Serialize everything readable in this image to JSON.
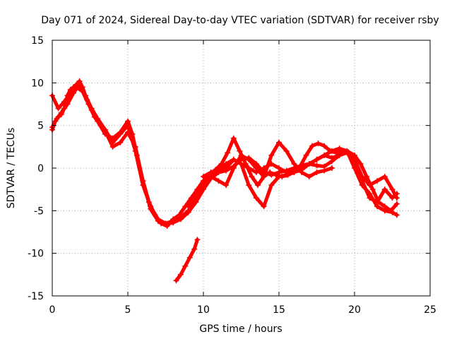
{
  "chart_data": {
    "type": "line",
    "title": "Day 071 of 2024, Sidereal Day-to-day VTEC variation (SDTVAR) for receiver rsby",
    "xlabel": "GPS time / hours",
    "ylabel": "SDTVAR / TECUs",
    "xlim": [
      0,
      25
    ],
    "ylim": [
      -15,
      15
    ],
    "xticks": [
      0,
      5,
      10,
      15,
      20,
      25
    ],
    "yticks": [
      -15,
      -10,
      -5,
      0,
      5,
      10,
      15
    ],
    "xtick_labels": [
      "0",
      "5",
      "10",
      "15",
      "20",
      "25"
    ],
    "ytick_labels": [
      "-15",
      "-10",
      "-5",
      "0",
      "5",
      "10",
      "15"
    ],
    "grid": true,
    "marker": "+",
    "color": "#ff0000",
    "series": [
      {
        "name": "track-1",
        "x": [
          0.0,
          0.2,
          0.4,
          0.6,
          0.8,
          1.0,
          1.2,
          1.4,
          1.6,
          1.8,
          2.0,
          2.3,
          2.6,
          3.0,
          3.5,
          4.0,
          4.5,
          5.0,
          5.3,
          5.6,
          6.0,
          6.4,
          6.8,
          7.2,
          7.6,
          8.0,
          8.4,
          8.8,
          9.2,
          9.6,
          10.0,
          10.4,
          10.8,
          11.2,
          11.6,
          12.0,
          12.4,
          12.8,
          13.2,
          13.6,
          14.0,
          14.4,
          14.8,
          15.2,
          15.6,
          16.0,
          16.4,
          16.8,
          17.2,
          17.6,
          18.0,
          18.4,
          18.8,
          19.2,
          19.6,
          20.0,
          20.4,
          20.8,
          21.2,
          21.6,
          22.0,
          22.4,
          22.8
        ],
        "y": [
          4.5,
          5.5,
          6.0,
          6.3,
          7.0,
          8.5,
          9.2,
          9.5,
          9.8,
          10.2,
          9.5,
          8.0,
          6.8,
          5.5,
          4.0,
          3.5,
          4.2,
          5.5,
          4.0,
          1.5,
          -1.5,
          -4.0,
          -5.5,
          -6.5,
          -6.8,
          -6.0,
          -5.5,
          -4.5,
          -3.5,
          -2.5,
          -1.5,
          -0.8,
          -0.2,
          0.5,
          1.8,
          3.5,
          2.0,
          0.5,
          -1.0,
          -2.0,
          -1.0,
          -0.5,
          -0.8,
          -1.0,
          -0.8,
          -0.5,
          0.2,
          1.5,
          2.6,
          2.9,
          2.6,
          2.0,
          1.8,
          2.0,
          1.9,
          1.5,
          0.5,
          -1.0,
          -2.5,
          -4.0,
          -4.5,
          -5.0,
          -4.2
        ]
      },
      {
        "name": "track-2",
        "x": [
          0.0,
          0.3,
          0.6,
          1.0,
          1.4,
          1.8,
          2.2,
          2.6,
          3.0,
          3.5,
          4.0,
          4.5,
          5.0,
          5.5,
          6.0,
          6.5,
          7.0,
          7.5,
          8.0,
          8.5,
          9.0,
          9.5,
          10.0,
          10.5,
          11.0,
          11.5,
          12.0,
          12.5,
          13.0,
          13.5,
          14.0,
          14.5,
          15.0,
          15.5,
          16.0,
          16.5,
          17.0,
          17.5,
          18.0,
          18.5,
          19.0,
          19.5,
          20.0,
          20.5,
          21.0,
          21.5,
          22.0,
          22.5,
          22.8
        ],
        "y": [
          4.8,
          5.8,
          6.5,
          7.5,
          8.8,
          9.8,
          8.5,
          7.0,
          5.8,
          4.5,
          3.0,
          4.0,
          5.0,
          2.0,
          -2.0,
          -4.5,
          -6.0,
          -6.5,
          -6.2,
          -5.8,
          -5.0,
          -3.5,
          -2.0,
          -1.0,
          0.0,
          0.5,
          1.0,
          0.5,
          0.0,
          -0.5,
          0.0,
          0.5,
          0.0,
          -0.5,
          -0.3,
          0.0,
          0.5,
          1.0,
          1.5,
          2.0,
          2.3,
          2.0,
          0.5,
          -1.5,
          -3.5,
          -4.0,
          -2.5,
          -3.5,
          -3.0
        ]
      },
      {
        "name": "track-3",
        "x": [
          0.0,
          0.4,
          0.8,
          1.2,
          1.6,
          2.0,
          2.4,
          2.8,
          3.2,
          3.6,
          4.0,
          4.5,
          5.0,
          5.5,
          6.0,
          6.5,
          7.0,
          7.5,
          8.0,
          8.5,
          9.0,
          9.5,
          10.0,
          10.5,
          11.0,
          11.5,
          12.0,
          12.5,
          13.0,
          13.5,
          14.0,
          14.5,
          15.0,
          15.5,
          16.0,
          16.5,
          17.0,
          17.5,
          18.0,
          18.5,
          19.0,
          19.5,
          20.0,
          20.5,
          21.0,
          21.5,
          22.0,
          22.5,
          22.8
        ],
        "y": [
          8.5,
          7.0,
          7.8,
          8.8,
          9.5,
          9.0,
          7.5,
          6.0,
          5.0,
          4.0,
          2.5,
          3.0,
          4.2,
          2.5,
          -1.5,
          -4.8,
          -6.2,
          -6.6,
          -6.4,
          -6.0,
          -5.2,
          -4.0,
          -2.5,
          -1.2,
          -0.5,
          -0.3,
          0.2,
          1.0,
          1.2,
          0.5,
          -0.5,
          -0.8,
          -0.5,
          -0.3,
          0.0,
          0.3,
          0.5,
          0.3,
          0.2,
          0.8,
          1.5,
          1.8,
          1.0,
          -1.0,
          -2.0,
          -1.5,
          -1.0,
          -2.5,
          -3.5
        ]
      },
      {
        "name": "track-4",
        "x": [
          9.0,
          9.3,
          9.6,
          10.0,
          10.5,
          11.0,
          11.5,
          12.0,
          12.5,
          13.0,
          13.5,
          14.0,
          14.5,
          15.0,
          15.5,
          16.0,
          16.5,
          17.0,
          17.5,
          18.0,
          18.5
        ],
        "y": [
          -4.5,
          -3.5,
          -2.5,
          -1.5,
          -1.0,
          -1.5,
          -2.0,
          0.0,
          1.5,
          1.0,
          0.0,
          -1.0,
          1.5,
          3.0,
          2.0,
          0.5,
          -0.5,
          -1.0,
          -0.5,
          -0.3,
          0.0
        ]
      },
      {
        "name": "track-5",
        "x": [
          10.0,
          10.5,
          11.0,
          11.5,
          12.0,
          12.5,
          13.0,
          13.5,
          14.0,
          14.5,
          15.0,
          15.5,
          16.0,
          16.5,
          17.0,
          17.5,
          18.0,
          18.5,
          19.0,
          19.5,
          20.0,
          20.5,
          21.0,
          21.5,
          22.0,
          22.5,
          22.8
        ],
        "y": [
          -1.0,
          -0.5,
          -0.2,
          0.0,
          1.0,
          0.5,
          -2.0,
          -3.5,
          -4.5,
          -2.0,
          -1.0,
          -0.8,
          -0.5,
          -0.2,
          0.5,
          1.0,
          1.5,
          1.2,
          1.5,
          2.0,
          0.0,
          -2.0,
          -3.0,
          -4.5,
          -5.0,
          -5.2,
          -5.5
        ]
      },
      {
        "name": "track-6",
        "x": [
          8.2,
          8.5,
          8.8,
          9.1,
          9.4,
          9.6
        ],
        "y": [
          -13.2,
          -12.5,
          -11.5,
          -10.5,
          -9.5,
          -8.4
        ]
      }
    ]
  }
}
